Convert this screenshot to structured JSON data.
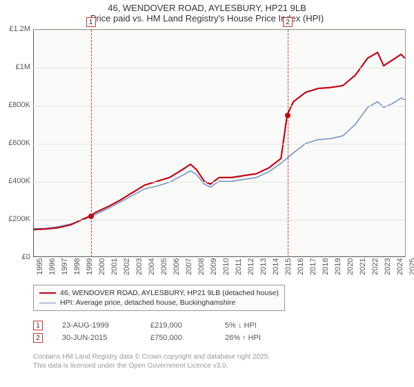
{
  "title": {
    "line1": "46, WENDOVER ROAD, AYLESBURY, HP21 9LB",
    "line2": "Price paid vs. HM Land Registry's House Price Index (HPI)"
  },
  "chart": {
    "type": "line",
    "background_color": "#fafaf8",
    "grid_color": "#e4e4e0",
    "axis_color": "#555555",
    "ylim": [
      0,
      1200000
    ],
    "ytick_step": 200000,
    "yticks": [
      "£0",
      "£200K",
      "£400K",
      "£600K",
      "£800K",
      "£1M",
      "£1.2M"
    ],
    "xlim": [
      1995,
      2025
    ],
    "xticks": [
      1995,
      1996,
      1997,
      1998,
      1999,
      2000,
      2001,
      2002,
      2003,
      2004,
      2005,
      2006,
      2007,
      2008,
      2009,
      2010,
      2011,
      2012,
      2013,
      2014,
      2015,
      2016,
      2017,
      2018,
      2019,
      2020,
      2021,
      2022,
      2023,
      2024,
      2025
    ],
    "series": [
      {
        "name": "property",
        "label": "46, WENDOVER ROAD, AYLESBURY, HP21 9LB (detached house)",
        "color": "#c20012",
        "line_width": 2,
        "data": [
          [
            1995,
            145000
          ],
          [
            1996,
            148000
          ],
          [
            1997,
            155000
          ],
          [
            1998,
            170000
          ],
          [
            1999,
            200000
          ],
          [
            1999.65,
            219000
          ],
          [
            2000,
            235000
          ],
          [
            2001,
            265000
          ],
          [
            2002,
            300000
          ],
          [
            2003,
            340000
          ],
          [
            2004,
            380000
          ],
          [
            2005,
            400000
          ],
          [
            2006,
            420000
          ],
          [
            2007,
            460000
          ],
          [
            2007.7,
            490000
          ],
          [
            2008.2,
            460000
          ],
          [
            2008.8,
            400000
          ],
          [
            2009.3,
            385000
          ],
          [
            2010,
            420000
          ],
          [
            2011,
            420000
          ],
          [
            2012,
            430000
          ],
          [
            2013,
            440000
          ],
          [
            2014,
            470000
          ],
          [
            2015,
            520000
          ],
          [
            2015.5,
            750000
          ],
          [
            2016,
            820000
          ],
          [
            2017,
            870000
          ],
          [
            2018,
            890000
          ],
          [
            2019,
            895000
          ],
          [
            2020,
            905000
          ],
          [
            2021,
            960000
          ],
          [
            2022,
            1050000
          ],
          [
            2022.8,
            1080000
          ],
          [
            2023.3,
            1010000
          ],
          [
            2024,
            1040000
          ],
          [
            2024.7,
            1070000
          ],
          [
            2025,
            1050000
          ]
        ]
      },
      {
        "name": "hpi",
        "label": "HPI: Average price, detached house, Buckinghamshire",
        "color": "#6a8fc7",
        "line_width": 1.5,
        "data": [
          [
            1995,
            150000
          ],
          [
            1996,
            152000
          ],
          [
            1997,
            160000
          ],
          [
            1998,
            175000
          ],
          [
            1999,
            195000
          ],
          [
            2000,
            225000
          ],
          [
            2001,
            255000
          ],
          [
            2002,
            290000
          ],
          [
            2003,
            325000
          ],
          [
            2004,
            360000
          ],
          [
            2005,
            375000
          ],
          [
            2006,
            395000
          ],
          [
            2007,
            430000
          ],
          [
            2007.7,
            455000
          ],
          [
            2008.2,
            435000
          ],
          [
            2008.8,
            385000
          ],
          [
            2009.3,
            370000
          ],
          [
            2010,
            400000
          ],
          [
            2011,
            400000
          ],
          [
            2012,
            410000
          ],
          [
            2013,
            420000
          ],
          [
            2014,
            450000
          ],
          [
            2015,
            495000
          ],
          [
            2016,
            550000
          ],
          [
            2017,
            600000
          ],
          [
            2018,
            620000
          ],
          [
            2019,
            625000
          ],
          [
            2020,
            640000
          ],
          [
            2021,
            700000
          ],
          [
            2022,
            790000
          ],
          [
            2022.8,
            820000
          ],
          [
            2023.3,
            790000
          ],
          [
            2024,
            810000
          ],
          [
            2024.7,
            840000
          ],
          [
            2025,
            830000
          ]
        ]
      }
    ],
    "markers": [
      {
        "id": "1",
        "x": 1999.65,
        "y": 219000
      },
      {
        "id": "2",
        "x": 2015.5,
        "y": 750000
      }
    ],
    "marker_line_color": "#c33333",
    "marker_box_border": "#c33333"
  },
  "legend": {
    "items": [
      {
        "color": "#c20012",
        "width": 2,
        "label": "46, WENDOVER ROAD, AYLESBURY, HP21 9LB (detached house)"
      },
      {
        "color": "#6a8fc7",
        "width": 1.5,
        "label": "HPI: Average price, detached house, Buckinghamshire"
      }
    ]
  },
  "points": [
    {
      "id": "1",
      "date": "23-AUG-1999",
      "price": "£219,000",
      "delta": "5% ↓ HPI"
    },
    {
      "id": "2",
      "date": "30-JUN-2015",
      "price": "£750,000",
      "delta": "26% ↑ HPI"
    }
  ],
  "attribution": {
    "line1": "Contains HM Land Registry data © Crown copyright and database right 2025.",
    "line2": "This data is licensed under the Open Government Licence v3.0."
  }
}
